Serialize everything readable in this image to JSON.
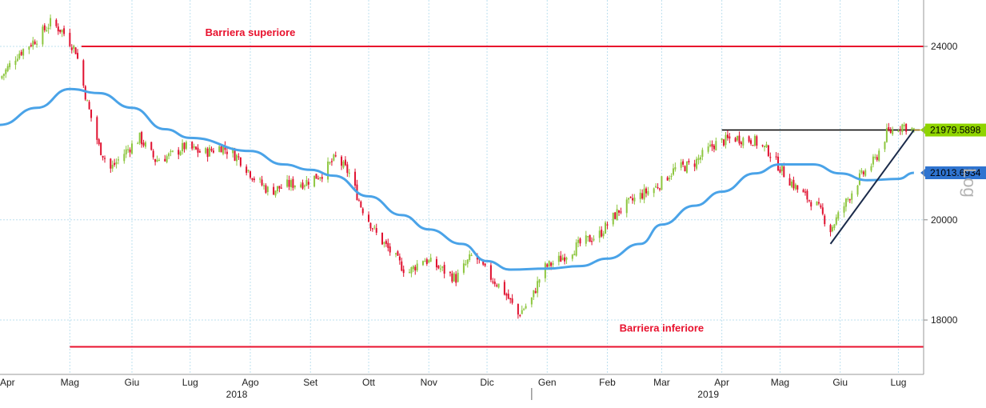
{
  "chart_data": {
    "type": "candlestick",
    "y_scale": "log",
    "ylim": [
      17000,
      25200
    ],
    "y_ticks": [
      {
        "value": 24000,
        "label": "24000"
      },
      {
        "value": 20000,
        "label": "20000"
      },
      {
        "value": 18000,
        "label": "18000"
      }
    ],
    "x_range": [
      "2018-04-01",
      "2019-07-21"
    ],
    "month_ticks": [
      {
        "date": "2018-04-01",
        "label": "Apr"
      },
      {
        "date": "2018-05-07",
        "label": "Mag"
      },
      {
        "date": "2018-06-08",
        "label": "Giu"
      },
      {
        "date": "2018-07-08",
        "label": "Lug"
      },
      {
        "date": "2018-08-08",
        "label": "Ago"
      },
      {
        "date": "2018-09-08",
        "label": "Set"
      },
      {
        "date": "2018-10-08",
        "label": "Ott"
      },
      {
        "date": "2018-11-08",
        "label": "Nov"
      },
      {
        "date": "2018-12-08",
        "label": "Dic"
      },
      {
        "date": "2019-01-08",
        "label": "Gen"
      },
      {
        "date": "2019-02-08",
        "label": "Feb"
      },
      {
        "date": "2019-03-08",
        "label": "Mar"
      },
      {
        "date": "2019-04-08",
        "label": "Apr"
      },
      {
        "date": "2019-05-08",
        "label": "Mag"
      },
      {
        "date": "2019-06-08",
        "label": "Giu"
      },
      {
        "date": "2019-07-08",
        "label": "Lug"
      }
    ],
    "year_labels": [
      {
        "date": "2018-08-01",
        "label": "2018"
      },
      {
        "date": "2019-04-01",
        "label": "2019"
      }
    ],
    "year_divider_date": "2018-12-31",
    "price_path": [
      [
        "2018-04-01",
        23200
      ],
      [
        "2018-04-10",
        23800
      ],
      [
        "2018-04-20",
        24200
      ],
      [
        "2018-04-27",
        24600
      ],
      [
        "2018-05-03",
        24400
      ],
      [
        "2018-05-10",
        23900
      ],
      [
        "2018-05-16",
        22600
      ],
      [
        "2018-05-22",
        21600
      ],
      [
        "2018-05-28",
        21100
      ],
      [
        "2018-06-05",
        21500
      ],
      [
        "2018-06-12",
        21800
      ],
      [
        "2018-06-20",
        21300
      ],
      [
        "2018-06-28",
        21400
      ],
      [
        "2018-07-05",
        21600
      ],
      [
        "2018-07-15",
        21450
      ],
      [
        "2018-07-24",
        21600
      ],
      [
        "2018-08-02",
        21350
      ],
      [
        "2018-08-10",
        20900
      ],
      [
        "2018-08-18",
        20600
      ],
      [
        "2018-08-27",
        20750
      ],
      [
        "2018-09-05",
        20800
      ],
      [
        "2018-09-14",
        21000
      ],
      [
        "2018-09-21",
        21350
      ],
      [
        "2018-09-28",
        21000
      ],
      [
        "2018-10-04",
        20300
      ],
      [
        "2018-10-12",
        19700
      ],
      [
        "2018-10-20",
        19300
      ],
      [
        "2018-10-28",
        18900
      ],
      [
        "2018-11-05",
        19200
      ],
      [
        "2018-11-14",
        19000
      ],
      [
        "2018-11-22",
        18800
      ],
      [
        "2018-12-01",
        19300
      ],
      [
        "2018-12-08",
        18900
      ],
      [
        "2018-12-16",
        18600
      ],
      [
        "2018-12-24",
        18100
      ],
      [
        "2018-12-31",
        18400
      ],
      [
        "2019-01-06",
        19000
      ],
      [
        "2019-01-15",
        19200
      ],
      [
        "2019-01-25",
        19500
      ],
      [
        "2019-02-04",
        19700
      ],
      [
        "2019-02-14",
        20200
      ],
      [
        "2019-02-24",
        20500
      ],
      [
        "2019-03-05",
        20700
      ],
      [
        "2019-03-15",
        21100
      ],
      [
        "2019-03-24",
        21200
      ],
      [
        "2019-04-04",
        21650
      ],
      [
        "2019-04-14",
        21800
      ],
      [
        "2019-04-24",
        21750
      ],
      [
        "2019-05-02",
        21500
      ],
      [
        "2019-05-10",
        21000
      ],
      [
        "2019-05-18",
        20600
      ],
      [
        "2019-05-27",
        20300
      ],
      [
        "2019-06-03",
        19800
      ],
      [
        "2019-06-10",
        20300
      ],
      [
        "2019-06-18",
        20900
      ],
      [
        "2019-06-26",
        21300
      ],
      [
        "2019-07-02",
        21900
      ],
      [
        "2019-07-10",
        22100
      ],
      [
        "2019-07-16",
        21980
      ]
    ],
    "moving_average": [
      [
        "2018-04-01",
        22100
      ],
      [
        "2018-04-20",
        22500
      ],
      [
        "2018-05-07",
        22950
      ],
      [
        "2018-05-22",
        22850
      ],
      [
        "2018-06-08",
        22500
      ],
      [
        "2018-06-25",
        22000
      ],
      [
        "2018-07-08",
        21800
      ],
      [
        "2018-08-08",
        21500
      ],
      [
        "2018-08-25",
        21200
      ],
      [
        "2018-09-08",
        21080
      ],
      [
        "2018-09-20",
        20950
      ],
      [
        "2018-10-08",
        20500
      ],
      [
        "2018-10-25",
        20100
      ],
      [
        "2018-11-08",
        19800
      ],
      [
        "2018-11-25",
        19500
      ],
      [
        "2018-12-08",
        19150
      ],
      [
        "2018-12-20",
        18980
      ],
      [
        "2019-01-08",
        19000
      ],
      [
        "2019-01-25",
        19050
      ],
      [
        "2019-02-08",
        19200
      ],
      [
        "2019-02-25",
        19500
      ],
      [
        "2019-03-08",
        19900
      ],
      [
        "2019-03-25",
        20300
      ],
      [
        "2019-04-08",
        20600
      ],
      [
        "2019-04-25",
        21000
      ],
      [
        "2019-05-08",
        21200
      ],
      [
        "2019-05-25",
        21200
      ],
      [
        "2019-06-08",
        21000
      ],
      [
        "2019-06-22",
        20850
      ],
      [
        "2019-07-08",
        20880
      ],
      [
        "2019-07-16",
        21013
      ]
    ],
    "horizontal_lines": [
      {
        "name": "Barriera superiore",
        "value": 24000,
        "from": "2018-05-13",
        "to": "2019-07-21",
        "color": "#e8112d",
        "label_date": "2018-08-08"
      },
      {
        "name": "Barriera inferiore",
        "value": 17500,
        "from": "2018-05-07",
        "to": "2019-07-21",
        "color": "#e8112d",
        "label_date": "2019-03-08"
      },
      {
        "name": "resistance",
        "value": 21980,
        "from": "2019-04-08",
        "to": "2019-07-19",
        "color": "#000000"
      }
    ],
    "trendline": {
      "from": [
        "2019-06-03",
        19500
      ],
      "to": [
        "2019-07-16",
        21980
      ],
      "color": "#1a2a4a"
    },
    "last_price": {
      "value": 21979.5898,
      "label": "21979.5898",
      "color": "#8fd400"
    },
    "ma_last": {
      "value": 21013.6934,
      "label": "21013.6934",
      "color": "#2f74d0"
    },
    "annotations": {
      "upper": "Barriera superiore",
      "lower": "Barriera inferiore"
    },
    "scale_label": "Log",
    "colors": {
      "up": "#8dc63f",
      "down": "#e0102f",
      "ma": "#4aa3e8",
      "barrier": "#e8112d",
      "grid": "#bde0ef"
    }
  }
}
